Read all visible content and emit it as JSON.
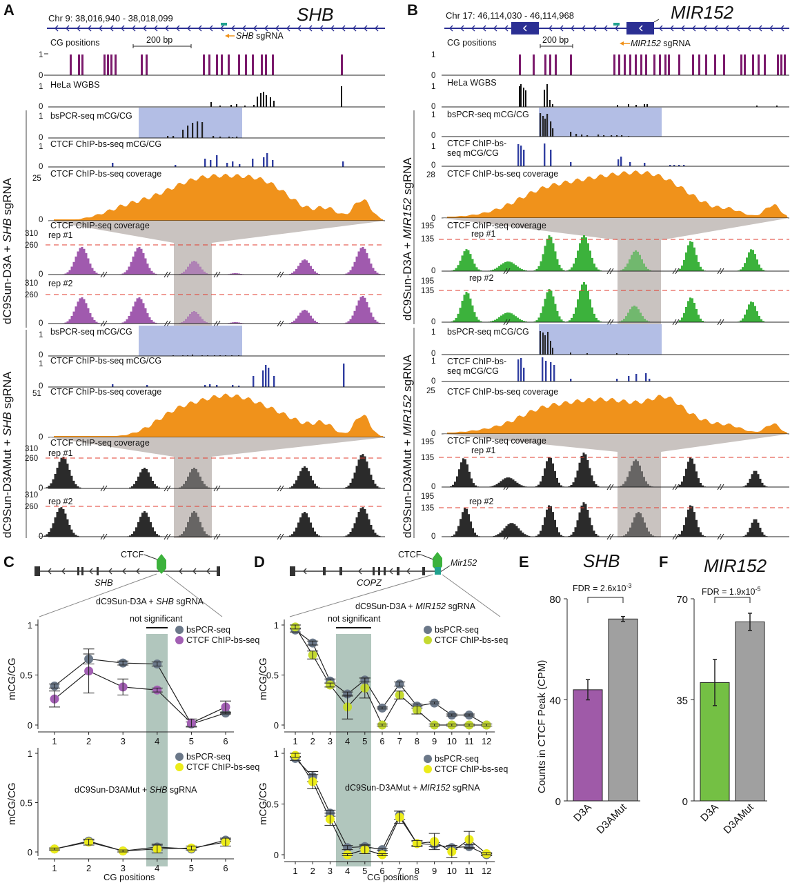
{
  "colors": {
    "gene": "#2b2f93",
    "cg": "#7b1a6c",
    "blue_bar": "#2f3da0",
    "orange": "#f0921b",
    "purple": "#a05aae",
    "green": "#3cb23c",
    "black": "#2b2b2b",
    "highlight": "#9aa8dc",
    "mask": "#c9c3c0",
    "red_dash": "#e23b2e",
    "teal": "#21a28e",
    "grey_bar": "#a0a0a0",
    "ylw": "#ecec1a",
    "lime": "#c4d931",
    "slate": "#6b7889",
    "violet": "#a25fb3",
    "sage": "#b1c6bd",
    "d3a_green": "#74c044",
    "d3a_purple": "#9f5aa8"
  },
  "panel_labels": {
    "A": "A",
    "B": "B",
    "C": "C",
    "D": "D",
    "E": "E",
    "F": "F"
  },
  "A": {
    "gene": "SHB",
    "coord": "Chr 9: 38,016,940 - 38,018,099",
    "sgrna_gene": "SHB",
    "sgrna_suffix": " sgRNA",
    "cg_label": "CG positions",
    "scale": "200 bp",
    "wgbs": "HeLa WGBS",
    "group1": {
      "pre": "dC9Sun-D3A + ",
      "gene": "SHB",
      "post": " sgRNA"
    },
    "group2": {
      "pre": "dC9Sun-D3AMut + ",
      "gene": "SHB",
      "post": " sgRNA"
    },
    "bspcr": "bsPCR-seq mCG/CG",
    "chipbs": "CTCF ChIP-bs-seq mCG/CG",
    "cov": "CTCF ChIP-bs-seq coverage",
    "chipseq": "CTCF ChIP-seq coverage",
    "rep1": "rep #1",
    "rep2": "rep #2",
    "y_one": "1",
    "y_zero": "0",
    "cov_max_1": "25",
    "cov_max_2": "51",
    "chip_max": "310",
    "chip_dash": "260"
  },
  "B": {
    "gene": "MIR152",
    "coord": "Chr 17: 46,114,030 - 46,114,968",
    "sgrna_gene": "MIR152",
    "sgrna_suffix": " sgRNA",
    "cg_label": "CG positions",
    "scale": "200 bp",
    "wgbs": "HeLa WGBS",
    "group1": {
      "pre": "dC9Sun-D3A + ",
      "gene": "MIR152",
      "post": " sgRNA"
    },
    "group2": {
      "pre": "dC9Sun-D3AMut + ",
      "gene": "MIR152",
      "post": " sgRNA"
    },
    "bspcr": "bsPCR-seq mCG/CG",
    "chipbs_1": "CTCF ChIP-bs-",
    "chipbs_2": "seq mCG/CG",
    "cov": "CTCF ChIP-bs-seq coverage",
    "chipseq": "CTCF ChIP-seq coverage",
    "rep1": "rep #1",
    "rep2": "rep #2",
    "y_one": "1",
    "y_zero": "0",
    "cov_max_1": "28",
    "cov_max_2": "25",
    "chip_max": "195",
    "chip_dash": "135"
  },
  "C": {
    "ctcf": "CTCF",
    "gene": "SHB",
    "sub1_pre": "dC9Sun-D3A + ",
    "sub1_gene": "SHB",
    "sub1_post": " sgRNA",
    "sub2_pre": "dC9Sun-D3AMut + ",
    "sub2_gene": "SHB",
    "sub2_post": " sgRNA",
    "ns": "not significant",
    "leg_a": "bsPCR-seq",
    "leg_b": "CTCF ChIP-bs-seq",
    "ylabel": "mCG/CG",
    "xlabel": "CG positions",
    "yt": [
      "0",
      "0.5",
      "1"
    ]
  },
  "D": {
    "ctcf": "CTCF",
    "gene": "COPZ",
    "mir": "Mir152",
    "sub1_pre": "dC9Sun-D3A + ",
    "sub1_gene": "MIR152",
    "sub1_post": " sgRNA",
    "sub2_pre": "dC9Sun-D3AMut + ",
    "sub2_gene": "MIR152",
    "sub2_post": " sgRNA",
    "ns": "not significant",
    "leg_a": "bsPCR-seq",
    "leg_b": "CTCF ChIP-bs-seq",
    "ylabel": "mCG/CG",
    "xlabel": "CG positions",
    "yt": [
      "0",
      "0.5",
      "1"
    ]
  },
  "E": {
    "title": "SHB",
    "fdr": "FDR = 2.6x10",
    "fdr_exp": "-3",
    "ylabel": "Counts in CTCF Peak (CPM)"
  },
  "F": {
    "title": "MIR152",
    "fdr": "FDR = 1.9x10",
    "fdr_exp": "-5"
  },
  "chart_data": [
    {
      "type": "line",
      "title": "C top: dC9Sun-D3A + SHB sgRNA",
      "xlabel": "",
      "ylabel": "mCG/CG",
      "ylim": [
        0,
        1
      ],
      "x": [
        1,
        2,
        3,
        4,
        5,
        6
      ],
      "series": [
        {
          "name": "bsPCR-seq",
          "values": [
            0.39,
            0.66,
            0.62,
            0.61,
            0.01,
            0.12
          ],
          "err": [
            0.02,
            0.05,
            0.02,
            0.02,
            0.02,
            0.01
          ]
        },
        {
          "name": "CTCF ChIP-bs-seq",
          "values": [
            0.26,
            0.54,
            0.38,
            0.35,
            0.02,
            0.18
          ],
          "err": [
            0.08,
            0.22,
            0.08,
            0.02,
            0.04,
            0.06
          ]
        }
      ]
    },
    {
      "type": "line",
      "title": "C bottom: dC9Sun-D3AMut + SHB sgRNA",
      "xlabel": "CG positions",
      "ylabel": "mCG/CG",
      "ylim": [
        0,
        1
      ],
      "x": [
        1,
        2,
        3,
        4,
        5,
        6
      ],
      "series": [
        {
          "name": "bsPCR-seq",
          "values": [
            0.03,
            0.11,
            0.01,
            0.05,
            0.03,
            0.12
          ],
          "err": [
            0.01,
            0.01,
            0.01,
            0.03,
            0.01,
            0.01
          ]
        },
        {
          "name": "CTCF ChIP-bs-seq",
          "values": [
            0.03,
            0.1,
            0.01,
            0.03,
            0.04,
            0.1
          ],
          "err": [
            0.01,
            0.03,
            0.01,
            0.04,
            0.02,
            0.04
          ]
        }
      ]
    },
    {
      "type": "line",
      "title": "D top: dC9Sun-D3A + MIR152 sgRNA",
      "xlabel": "",
      "ylabel": "mCG/CG",
      "ylim": [
        0,
        1
      ],
      "x": [
        1,
        2,
        3,
        4,
        5,
        6,
        7,
        8,
        9,
        10,
        11,
        12
      ],
      "series": [
        {
          "name": "bsPCR-seq",
          "values": [
            0.95,
            0.82,
            0.44,
            0.31,
            0.45,
            0.17,
            0.41,
            0.19,
            0.22,
            0.1,
            0.1,
            0.0
          ],
          "err": [
            0.02,
            0.02,
            0.02,
            0.02,
            0.02,
            0.01,
            0.02,
            0.02,
            0.01,
            0.01,
            0.01,
            0.01
          ]
        },
        {
          "name": "CTCF ChIP-bs-seq",
          "values": [
            0.98,
            0.7,
            0.4,
            0.18,
            0.37,
            0.0,
            0.3,
            0.15,
            0.0,
            0.0,
            0.0,
            0.0
          ],
          "err": [
            0.02,
            0.04,
            0.02,
            0.12,
            0.1,
            0.01,
            0.04,
            0.04,
            0.01,
            0.01,
            0.01,
            0.01
          ]
        }
      ]
    },
    {
      "type": "line",
      "title": "D bottom: dC9Sun-D3AMut + MIR152 sgRNA",
      "xlabel": "CG positions",
      "ylabel": "mCG/CG",
      "ylim": [
        0,
        1
      ],
      "x": [
        1,
        2,
        3,
        4,
        5,
        6,
        7,
        8,
        9,
        10,
        11,
        12
      ],
      "series": [
        {
          "name": "bsPCR-seq",
          "values": [
            0.95,
            0.77,
            0.41,
            0.07,
            0.08,
            0.05,
            0.39,
            0.11,
            0.1,
            0.07,
            0.08,
            0.0
          ],
          "err": [
            0.02,
            0.05,
            0.03,
            0.02,
            0.02,
            0.01,
            0.04,
            0.02,
            0.02,
            0.02,
            0.02,
            0.01
          ]
        },
        {
          "name": "CTCF ChIP-bs-seq",
          "values": [
            0.98,
            0.72,
            0.35,
            0.0,
            0.05,
            0.0,
            0.37,
            0.11,
            0.13,
            0.03,
            0.15,
            0.01
          ],
          "err": [
            0.02,
            0.07,
            0.06,
            0.01,
            0.04,
            0.01,
            0.06,
            0.03,
            0.08,
            0.06,
            0.08,
            0.01
          ]
        }
      ]
    },
    {
      "type": "bar",
      "title": "SHB",
      "categories": [
        "D3A",
        "D3AMut"
      ],
      "values": [
        44,
        72
      ],
      "err": [
        4,
        1
      ],
      "ylabel": "Counts in CTCF Peak (CPM)",
      "ylim": [
        0,
        80
      ],
      "yticks": [
        0,
        40,
        80
      ],
      "annotation": "FDR = 2.6x10^-3"
    },
    {
      "type": "bar",
      "title": "MIR152",
      "categories": [
        "D3A",
        "D3AMut"
      ],
      "values": [
        41,
        62
      ],
      "err": [
        8,
        3
      ],
      "ylabel": "",
      "ylim": [
        0,
        70
      ],
      "yticks": [
        0,
        35,
        70
      ],
      "annotation": "FDR = 1.9x10^-5"
    }
  ]
}
